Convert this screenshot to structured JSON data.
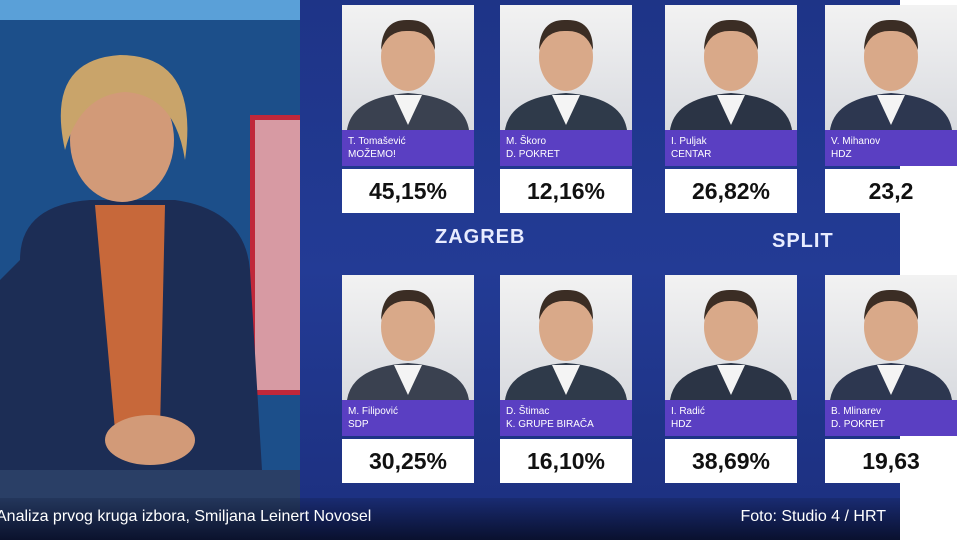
{
  "screen": {
    "cities": [
      "ZAGREB",
      "SPLIT"
    ],
    "candidates": [
      {
        "name": "T. Tomašević",
        "party": "MOŽEMO!",
        "result": "45,15%"
      },
      {
        "name": "M. Škoro",
        "party": "D. POKRET",
        "result": "12,16%"
      },
      {
        "name": "I. Puljak",
        "party": "CENTAR",
        "result": "26,82%"
      },
      {
        "name": "V. Mihanov",
        "party": "HDZ",
        "result": "23,2"
      },
      {
        "name": "M. Filipović",
        "party": "SDP",
        "result": "30,25%"
      },
      {
        "name": "D. Štimac",
        "party": "K. GRUPE BIRAČA",
        "result": "16,10%"
      },
      {
        "name": "I. Radić",
        "party": "HDZ",
        "result": "38,69%"
      },
      {
        "name": "B. Mlinarev",
        "party": "D. POKRET",
        "result": "19,63"
      }
    ]
  },
  "caption": {
    "text": "Analiza prvog kruga izbora, Smiljana Leinert Novosel",
    "credit": "Foto: Studio 4 / HRT"
  }
}
